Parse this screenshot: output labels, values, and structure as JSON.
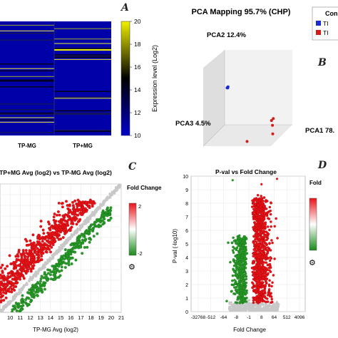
{
  "panels": {
    "a_letter": "A",
    "b_letter": "B",
    "c_letter": "C",
    "d_letter": "D"
  },
  "chart_data": [
    {
      "type": "heatmap",
      "columns": [
        "TP-MG",
        "TP+MG"
      ],
      "colorbar": {
        "label": "Expression level (Log2)",
        "ticks": [
          20,
          18,
          16,
          14,
          12,
          10
        ],
        "range": [
          10,
          20
        ],
        "colors": [
          "#0000c8",
          "#000000",
          "#f0f000"
        ]
      }
    },
    {
      "type": "scatter",
      "title": "PCA Mapping 95.7% (CHP)",
      "axes": [
        "PCA1 78.",
        "PCA2 12.4%",
        "PCA3 4.5%"
      ],
      "legend": {
        "title": "Con",
        "items": [
          {
            "label": "TI",
            "color": "#1a2bd6"
          },
          {
            "label": "TI",
            "color": "#d61a1a"
          }
        ]
      },
      "groups": [
        {
          "color": "#1a2bd6",
          "points": [
            [
              0.1,
              0.55,
              0.2
            ],
            [
              0.11,
              0.56,
              0.21
            ],
            [
              0.12,
              0.57,
              0.22
            ],
            [
              0.11,
              0.55,
              0.2
            ]
          ]
        },
        {
          "color": "#d61a1a",
          "points": [
            [
              0.85,
              0.2,
              0.5
            ],
            [
              0.87,
              0.22,
              0.48
            ],
            [
              0.88,
              0.15,
              0.55
            ],
            [
              0.9,
              0.05,
              0.6
            ],
            [
              0.6,
              0.02,
              0.85
            ]
          ]
        }
      ]
    },
    {
      "type": "scatter",
      "title": "TP+MG Avg (log2) vs TP-MG Avg (log2)",
      "xlabel": "TP-MG Avg (log2)",
      "x_ticks": [
        10,
        11,
        12,
        13,
        14,
        15,
        16,
        17,
        18,
        19,
        20,
        21
      ],
      "xlim": [
        9,
        21
      ],
      "ylim": [
        9,
        21
      ],
      "colorbar": {
        "label": "Fold Change",
        "ticks": [
          "2",
          "-2"
        ],
        "colors": [
          "#e8141a",
          "#ffffff",
          "#1a8a1a"
        ]
      },
      "series": [
        {
          "name": "up",
          "color": "#e8141a"
        },
        {
          "name": "down",
          "color": "#2a9a2a"
        },
        {
          "name": "unchanged",
          "color": "#c8c8c8"
        }
      ]
    },
    {
      "type": "scatter",
      "title": "P-val vs Fold Change",
      "xlabel": "Fold Change",
      "ylabel": "P-val (-log10)",
      "x_ticks": [
        "-32768",
        "-512",
        "-64",
        "-8",
        "-1",
        "8",
        "64",
        "512",
        "4096"
      ],
      "y_ticks": [
        0,
        1,
        2,
        3,
        4,
        5,
        6,
        7,
        8,
        9,
        10
      ],
      "ylim": [
        0,
        10
      ],
      "colorbar": {
        "label": "Fold",
        "colors": [
          "#e8141a",
          "#ffffff",
          "#1a8a1a"
        ]
      },
      "series": [
        {
          "name": "up",
          "color": "#e8141a"
        },
        {
          "name": "down",
          "color": "#2a9a2a"
        },
        {
          "name": "unchanged",
          "color": "#c8c8c8"
        }
      ]
    }
  ]
}
